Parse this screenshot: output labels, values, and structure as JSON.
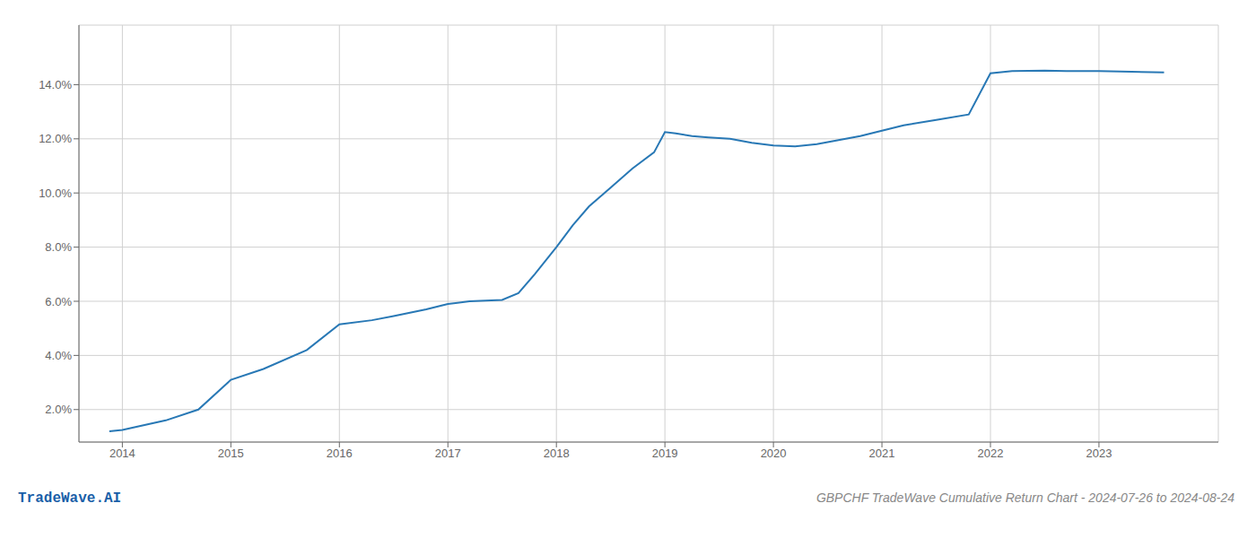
{
  "chart_data": {
    "type": "line",
    "title": "GBPCHF TradeWave Cumulative Return Chart - 2024-07-26 to 2024-08-24",
    "annotations": [
      "TradeWave.AI"
    ],
    "x": [
      2013.88,
      2014.0,
      2014.4,
      2014.7,
      2015.0,
      2015.3,
      2015.7,
      2016.0,
      2016.3,
      2016.5,
      2016.8,
      2017.0,
      2017.2,
      2017.5,
      2017.65,
      2017.8,
      2018.0,
      2018.15,
      2018.3,
      2018.5,
      2018.7,
      2018.9,
      2019.0,
      2019.1,
      2019.25,
      2019.4,
      2019.6,
      2019.8,
      2020.0,
      2020.2,
      2020.4,
      2020.6,
      2020.8,
      2021.0,
      2021.2,
      2021.5,
      2021.8,
      2022.0,
      2022.2,
      2022.5,
      2022.7,
      2023.0,
      2023.3,
      2023.6
    ],
    "values": [
      1.2,
      1.25,
      1.6,
      2.0,
      3.1,
      3.5,
      4.2,
      5.15,
      5.3,
      5.45,
      5.7,
      5.9,
      6.0,
      6.05,
      6.3,
      7.0,
      8.0,
      8.8,
      9.5,
      10.2,
      10.9,
      11.5,
      12.25,
      12.2,
      12.1,
      12.05,
      12.0,
      11.85,
      11.75,
      11.72,
      11.8,
      11.95,
      12.1,
      12.3,
      12.5,
      12.7,
      12.9,
      14.42,
      14.5,
      14.52,
      14.5,
      14.5,
      14.48,
      14.45
    ],
    "color": "#2878b5",
    "xlim": [
      2013.6,
      2024.1
    ],
    "ylim": [
      0.8,
      16.2
    ],
    "xticks": [
      2014,
      2015,
      2016,
      2017,
      2018,
      2019,
      2020,
      2021,
      2022,
      2023
    ],
    "yticks": [
      {
        "value": 2.0,
        "label": "2.0%"
      },
      {
        "value": 4.0,
        "label": "4.0%"
      },
      {
        "value": 6.0,
        "label": "6.0%"
      },
      {
        "value": 8.0,
        "label": "8.0%"
      },
      {
        "value": 10.0,
        "label": "10.0%"
      },
      {
        "value": 12.0,
        "label": "12.0%"
      },
      {
        "value": 14.0,
        "label": "14.0%"
      }
    ],
    "grid": true
  }
}
